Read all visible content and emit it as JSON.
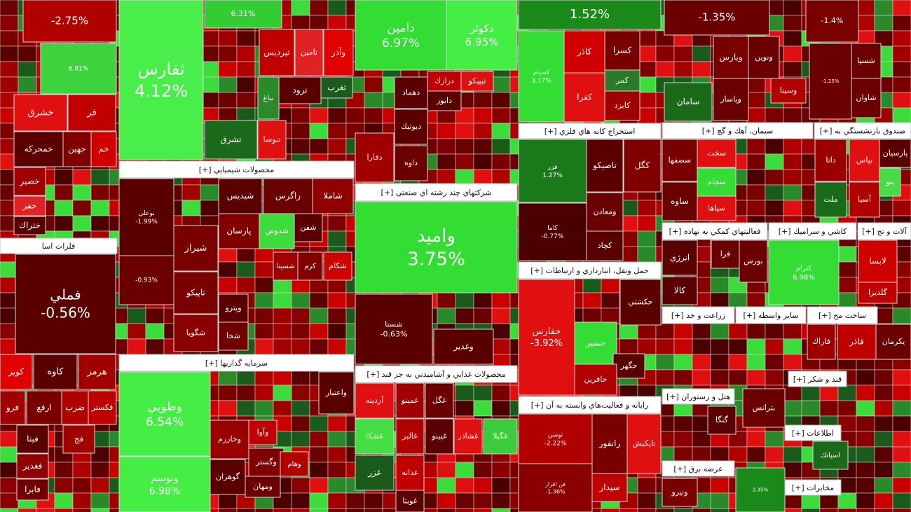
{
  "tiles": [
    {
      "change": "-2.75%"
    },
    {
      "change": "6.81%"
    },
    {
      "label": "خشرق"
    },
    {
      "label": "فر"
    },
    {
      "label": "خمحرکه"
    },
    {
      "label": "جهين"
    },
    {
      "label": "خم"
    },
    {
      "label": "خصير"
    },
    {
      "label": "خفر"
    },
    {
      "label": "ختراك"
    },
    {
      "label": "فملي",
      "change": "-0.56%"
    },
    {
      "label": "كاوه"
    },
    {
      "label": "هرمز"
    },
    {
      "label": "كوير"
    },
    {
      "label": "ارفع"
    },
    {
      "label": "ضرب"
    },
    {
      "label": "فكستر"
    },
    {
      "label": "فرو"
    },
    {
      "label": "فيتا"
    },
    {
      "label": "فج"
    },
    {
      "label": "فغدير"
    },
    {
      "label": "فابرا"
    },
    {
      "label": "ثفارس",
      "change": "4.12%"
    },
    {
      "change": "6.31%"
    },
    {
      "label": "تيرديس"
    },
    {
      "label": "تامين"
    },
    {
      "label": "وآذر"
    },
    {
      "label": "نباغ"
    },
    {
      "label": "ترود"
    },
    {
      "label": "تغرب"
    },
    {
      "label": "تشرق"
    },
    {
      "label": "تنوسا"
    },
    {
      "label": "بوعلي",
      "change": "-1.99%"
    },
    {
      "label": "شيديس"
    },
    {
      "label": "زاگرس"
    },
    {
      "label": "شاملا"
    },
    {
      "label": "شيراز"
    },
    {
      "label": "پارسان"
    },
    {
      "label": "شدوص"
    },
    {
      "label": "شفن"
    },
    {
      "label": "تاپيكو"
    },
    {
      "label": "شگويا"
    },
    {
      "change": "-0.93%"
    },
    {
      "label": "وپترو"
    },
    {
      "label": "شخا"
    },
    {
      "label": "شسينا"
    },
    {
      "label": "كرم"
    },
    {
      "label": "شكام"
    },
    {
      "label": "وطوبي",
      "change": "6.54%"
    },
    {
      "label": "ونوسم",
      "change": "6.98%"
    },
    {
      "label": "واعتبار"
    },
    {
      "label": "وخارزم"
    },
    {
      "label": "وآوا"
    },
    {
      "label": "وگستر"
    },
    {
      "label": "گوهران"
    },
    {
      "label": "ومهان"
    },
    {
      "label": "وهام"
    },
    {
      "label": "دامين",
      "change": "6.97%"
    },
    {
      "label": "دكوثر",
      "change": "6.95%"
    },
    {
      "label": "درازك"
    },
    {
      "label": "تيپيكو"
    },
    {
      "label": "دهماد"
    },
    {
      "label": "دابور"
    },
    {
      "label": "ديوتيك"
    },
    {
      "label": "داوه"
    },
    {
      "label": "دفارا"
    },
    {
      "label": "واميد",
      "change": "3.75%"
    },
    {
      "label": "شستا",
      "change": "-0.63%"
    },
    {
      "label": "وغدير"
    },
    {
      "label": "آردينه"
    },
    {
      "label": "غمينو"
    },
    {
      "label": "غگل"
    },
    {
      "label": "غشكا"
    },
    {
      "label": "غالبر"
    },
    {
      "label": "غپينو"
    },
    {
      "label": "غشاذر"
    },
    {
      "label": "غگيلا"
    },
    {
      "label": "غزر"
    },
    {
      "label": "غدانه"
    },
    {
      "label": "غويتا"
    },
    {
      "change": "1.52%"
    },
    {
      "label": "کسپام",
      "change": "3.17%"
    },
    {
      "label": "كاذر"
    },
    {
      "label": "كسرا"
    },
    {
      "label": "كفرا"
    },
    {
      "label": "كمر"
    },
    {
      "label": "كايزد"
    },
    {
      "label": "فزر",
      "change": "1.27%"
    },
    {
      "label": "تاصيكو"
    },
    {
      "label": "كگل"
    },
    {
      "label": "كاما",
      "change": "-0.77%"
    },
    {
      "label": "ومعادن"
    },
    {
      "label": "كچاد"
    },
    {
      "label": "حفارس",
      "change": "-3.92%"
    },
    {
      "label": "حكشتي"
    },
    {
      "label": "حسير"
    },
    {
      "label": "حگهر"
    },
    {
      "label": "حافرين"
    },
    {
      "label": "توسن",
      "change": "-2.22%"
    },
    {
      "label": "رانفور"
    },
    {
      "label": "تاپكيش"
    },
    {
      "label": "فن افزار",
      "change": "-1.36%"
    },
    {
      "label": "سيدار"
    },
    {
      "change": "-1.35%"
    },
    {
      "label": "ويارس"
    },
    {
      "label": "ونوين"
    },
    {
      "label": "سامان"
    },
    {
      "label": "وپاسار"
    },
    {
      "label": "وسينا"
    },
    {
      "label": "سصفها"
    },
    {
      "label": "سخت"
    },
    {
      "label": "سجام"
    },
    {
      "label": "سپاها"
    },
    {
      "label": "ساوه"
    },
    {
      "label": "انرژي"
    },
    {
      "label": "فرا"
    },
    {
      "label": "بورس"
    },
    {
      "label": "كالا"
    },
    {
      "label": "كترام",
      "change": "6.98%"
    },
    {
      "label": "فاراك"
    },
    {
      "label": "فاذر"
    },
    {
      "label": "گنگا"
    },
    {
      "label": "بترانس"
    },
    {
      "change": "2.35%"
    },
    {
      "label": "ونيرو"
    },
    {
      "change": "-1.4%"
    },
    {
      "label": "شسپا"
    },
    {
      "label": "شاوان"
    },
    {
      "change": "-1.25%"
    },
    {
      "label": "داتا"
    },
    {
      "label": "بپاس"
    },
    {
      "label": "پارسيان"
    },
    {
      "label": "بنو"
    },
    {
      "label": "ملت"
    },
    {
      "label": "آسيا"
    },
    {
      "label": "لابسا"
    },
    {
      "label": "گلديرا"
    },
    {
      "label": "اسياتك"
    },
    {
      "label": "يكرمان"
    }
  ],
  "headers": [
    "فلزات اسا",
    "محصولات شيميايي [+]",
    "سرمايه گذاريها [+]",
    "شركتهاي چند رشته اي صنعتي [+]",
    "محصولات غذايي و آشاميدني به جز قند [+]",
    "استخراج كانه هاي فلزي [+]",
    "حمل ونقل، انبارداري و ارتباطات [+]",
    "رايانه و فعاليت‌هاي وابسته به آن [+]",
    "سيمان، آهك و گچ [+]",
    "صندوق بازنشستگي به [+]",
    "فعاليتهاي كمكي به نهاده [+]",
    "كاشي و سراميك [+]",
    "آلات و تج [+]",
    "زراعت و خد [+]",
    "ساير واسطه [+]",
    "ساخت مح [+]",
    "هتل و رستوران [+]",
    "عرضه برق [+]",
    "قند و شكر [+]",
    "مخابرات [+]",
    "اطلاعات [+]"
  ]
}
